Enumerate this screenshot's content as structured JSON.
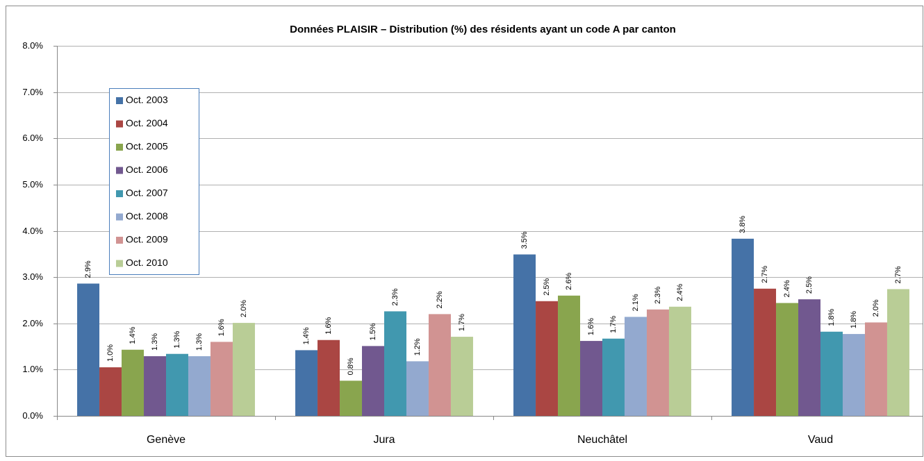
{
  "chart_data": {
    "type": "bar",
    "title": "Données PLAISIR – Distribution (%) des résidents ayant un code A par canton",
    "categories": [
      "Genève",
      "Jura",
      "Neuchâtel",
      "Vaud"
    ],
    "ylim": [
      0,
      8
    ],
    "yticks": [
      {
        "value": 0,
        "label": "0.0%"
      },
      {
        "value": 1,
        "label": "1.0%"
      },
      {
        "value": 2,
        "label": "2.0%"
      },
      {
        "value": 3,
        "label": "3.0%"
      },
      {
        "value": 4,
        "label": "4.0%"
      },
      {
        "value": 5,
        "label": "5.0%"
      },
      {
        "value": 6,
        "label": "6.0%"
      },
      {
        "value": 7,
        "label": "7.0%"
      },
      {
        "value": 8,
        "label": "8.0%"
      }
    ],
    "grid": true,
    "series": [
      {
        "name": "Oct. 2003",
        "color": "#4572a7",
        "values": [
          2.86,
          1.42,
          3.49,
          3.83
        ],
        "value_labels": [
          "2.9%",
          "1.4%",
          "3.5%",
          "3.8%"
        ]
      },
      {
        "name": "Oct. 2004",
        "color": "#aa4643",
        "values": [
          1.05,
          1.64,
          2.48,
          2.75
        ],
        "value_labels": [
          "1.0%",
          "1.6%",
          "2.5%",
          "2.7%"
        ]
      },
      {
        "name": "Oct. 2005",
        "color": "#89a54e",
        "values": [
          1.43,
          0.76,
          2.6,
          2.44
        ],
        "value_labels": [
          "1.4%",
          "0.8%",
          "2.6%",
          "2.4%"
        ]
      },
      {
        "name": "Oct. 2006",
        "color": "#71588f",
        "values": [
          1.29,
          1.51,
          1.62,
          2.52
        ],
        "value_labels": [
          "1.3%",
          "1.5%",
          "1.6%",
          "2.5%"
        ]
      },
      {
        "name": "Oct. 2007",
        "color": "#4198af",
        "values": [
          1.34,
          2.26,
          1.67,
          1.82
        ],
        "value_labels": [
          "1.3%",
          "2.3%",
          "1.7%",
          "1.8%"
        ]
      },
      {
        "name": "Oct. 2008",
        "color": "#93a9cf",
        "values": [
          1.29,
          1.18,
          2.14,
          1.77
        ],
        "value_labels": [
          "1.3%",
          "1.2%",
          "2.1%",
          "1.8%"
        ]
      },
      {
        "name": "Oct. 2009",
        "color": "#d19392",
        "values": [
          1.6,
          2.2,
          2.3,
          2.02
        ],
        "value_labels": [
          "1.6%",
          "2.2%",
          "2.3%",
          "2.0%"
        ]
      },
      {
        "name": "Oct. 2010",
        "color": "#b9cd96",
        "values": [
          2.01,
          1.71,
          2.36,
          2.74
        ],
        "value_labels": [
          "2.0%",
          "1.7%",
          "2.4%",
          "2.7%"
        ]
      }
    ]
  }
}
